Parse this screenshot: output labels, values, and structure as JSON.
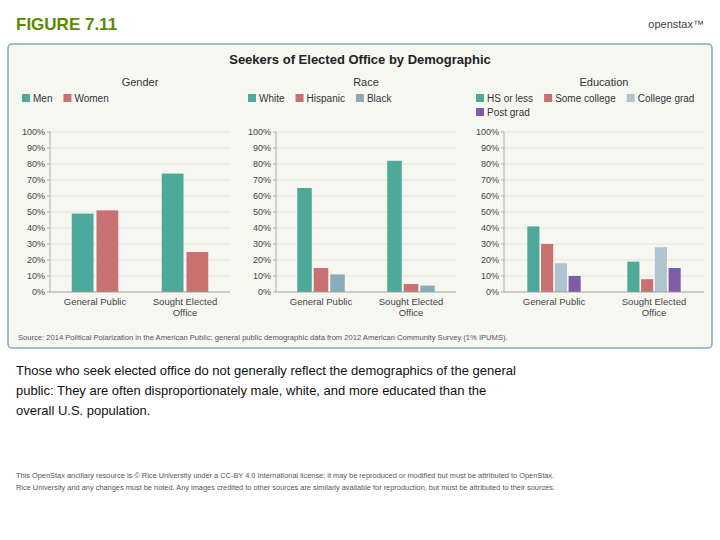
{
  "chart_data": [
    {
      "type": "bar",
      "title": "Gender",
      "categories": [
        "General Public",
        "Sought Elected\nOffice"
      ],
      "series": [
        {
          "name": "Men",
          "color": "#4da99a",
          "values": [
            49,
            74
          ]
        },
        {
          "name": "Women",
          "color": "#c97070",
          "values": [
            51,
            25
          ]
        }
      ],
      "ylim": [
        0,
        100
      ],
      "yticks": [
        {
          "value": 0,
          "label": "0%"
        },
        {
          "value": 10,
          "label": "10%"
        },
        {
          "value": 20,
          "label": "20%"
        },
        {
          "value": 30,
          "label": "30%"
        },
        {
          "value": 40,
          "label": "40%"
        },
        {
          "value": 50,
          "label": "50%"
        },
        {
          "value": 60,
          "label": "60%"
        },
        {
          "value": 70,
          "label": "70%"
        },
        {
          "value": 80,
          "label": "80%"
        },
        {
          "value": 90,
          "label": "90%"
        },
        {
          "value": 100,
          "label": "100%"
        }
      ],
      "grid": true,
      "legend": "top",
      "annotations": [
        "FIGURE 7.11",
        "openstax™",
        "Seekers of Elected Office by Demographic",
        "Source: 2014 Political Polarization in the American Public; general public demographic data from 2012 American Community Survey (1% IPUMS).",
        "Those who seek elected office do not generally reflect the demographics of the general",
        "public: They are often disproportionately male, white, and more educated than the",
        "overall U.S. population.",
        "This OpenStax ancillary resource is © Rice University under a CC-BY 4.0 International license; it may be reproduced or modified but must be attributed to OpenStax.",
        "Rice University and any changes must be noted. Any images credited to other sources are similarly available for reproduction, but must be attributed to their sources."
      ]
    },
    {
      "type": "bar",
      "title": "Race",
      "categories": [
        "General Public",
        "Sought Elected\nOffice"
      ],
      "series": [
        {
          "name": "White",
          "color": "#4da99a",
          "values": [
            65,
            82
          ]
        },
        {
          "name": "Hispanic",
          "color": "#c97070",
          "values": [
            15,
            5
          ]
        },
        {
          "name": "Black",
          "color": "#8aabba",
          "values": [
            11,
            4
          ]
        }
      ],
      "ylim": [
        0,
        100
      ],
      "yticks": [
        {
          "value": 0,
          "label": "0%"
        },
        {
          "value": 10,
          "label": "10%"
        },
        {
          "value": 20,
          "label": "20%"
        },
        {
          "value": 30,
          "label": "30%"
        },
        {
          "value": 40,
          "label": "40%"
        },
        {
          "value": 50,
          "label": "50%"
        },
        {
          "value": 60,
          "label": "60%"
        },
        {
          "value": 70,
          "label": "70%"
        },
        {
          "value": 80,
          "label": "80%"
        },
        {
          "value": 90,
          "label": "90%"
        },
        {
          "value": 100,
          "label": "100%"
        }
      ],
      "grid": true,
      "legend": "top"
    },
    {
      "type": "bar",
      "title": "Education",
      "categories": [
        "General Public",
        "Sought Elected\nOffice"
      ],
      "series": [
        {
          "name": "HS or less",
          "color": "#4da99a",
          "values": [
            41,
            19
          ]
        },
        {
          "name": "Some college",
          "color": "#c97070",
          "values": [
            30,
            8
          ]
        },
        {
          "name": "College grad",
          "color": "#b0c4cf",
          "values": [
            18,
            28
          ]
        },
        {
          "name": "Post grad",
          "color": "#7b5ea7",
          "values": [
            10,
            15
          ]
        }
      ],
      "ylim": [
        0,
        100
      ],
      "yticks": [
        {
          "value": 0,
          "label": "0%"
        },
        {
          "value": 10,
          "label": "10%"
        },
        {
          "value": 20,
          "label": "20%"
        },
        {
          "value": 30,
          "label": "30%"
        },
        {
          "value": 40,
          "label": "40%"
        },
        {
          "value": 50,
          "label": "50%"
        },
        {
          "value": 60,
          "label": "60%"
        },
        {
          "value": 70,
          "label": "70%"
        },
        {
          "value": 80,
          "label": "80%"
        },
        {
          "value": 90,
          "label": "90%"
        },
        {
          "value": 100,
          "label": "100%"
        }
      ],
      "grid": true,
      "legend": "top"
    }
  ]
}
